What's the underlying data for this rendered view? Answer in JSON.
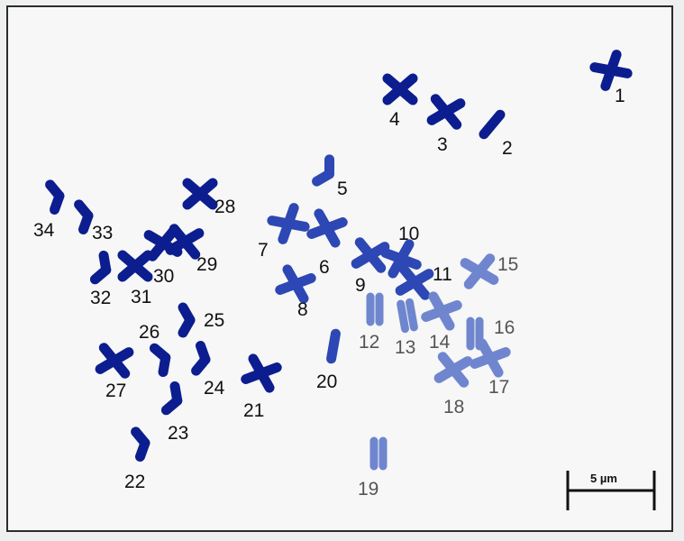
{
  "image": {
    "scale_bar_label": "5 µm",
    "colors": {
      "dark": "#0c1d8f",
      "mid": "#2d47b4",
      "light": "#6f86cf",
      "label_dark": "#111111",
      "label_light": "#555555"
    }
  },
  "chromosomes": [
    {
      "label": "1",
      "shape": "x",
      "tone": "dark"
    },
    {
      "label": "2",
      "shape": "bar",
      "tone": "dark"
    },
    {
      "label": "3",
      "shape": "x",
      "tone": "dark"
    },
    {
      "label": "4",
      "shape": "x",
      "tone": "dark"
    },
    {
      "label": "5",
      "shape": "bent",
      "tone": "mid"
    },
    {
      "label": "6",
      "shape": "x",
      "tone": "mid"
    },
    {
      "label": "7",
      "shape": "x",
      "tone": "mid"
    },
    {
      "label": "8",
      "shape": "x",
      "tone": "mid"
    },
    {
      "label": "9",
      "shape": "x",
      "tone": "mid"
    },
    {
      "label": "10",
      "shape": "x",
      "tone": "mid"
    },
    {
      "label": "11",
      "shape": "x",
      "tone": "mid"
    },
    {
      "label": "12",
      "shape": "pair",
      "tone": "light"
    },
    {
      "label": "13",
      "shape": "pair",
      "tone": "light"
    },
    {
      "label": "14",
      "shape": "x",
      "tone": "light"
    },
    {
      "label": "15",
      "shape": "x",
      "tone": "light"
    },
    {
      "label": "16",
      "shape": "pair",
      "tone": "light"
    },
    {
      "label": "17",
      "shape": "x",
      "tone": "light"
    },
    {
      "label": "18",
      "shape": "x",
      "tone": "light"
    },
    {
      "label": "19",
      "shape": "pair",
      "tone": "light"
    },
    {
      "label": "20",
      "shape": "bar",
      "tone": "mid"
    },
    {
      "label": "21",
      "shape": "x",
      "tone": "dark"
    },
    {
      "label": "22",
      "shape": "bent",
      "tone": "dark"
    },
    {
      "label": "23",
      "shape": "bent",
      "tone": "dark"
    },
    {
      "label": "24",
      "shape": "bent",
      "tone": "dark"
    },
    {
      "label": "25",
      "shape": "bent",
      "tone": "dark"
    },
    {
      "label": "26",
      "shape": "bent",
      "tone": "dark"
    },
    {
      "label": "27",
      "shape": "x",
      "tone": "dark"
    },
    {
      "label": "28",
      "shape": "x",
      "tone": "dark"
    },
    {
      "label": "29",
      "shape": "x",
      "tone": "dark"
    },
    {
      "label": "30",
      "shape": "x",
      "tone": "dark"
    },
    {
      "label": "31",
      "shape": "x",
      "tone": "dark"
    },
    {
      "label": "32",
      "shape": "bent",
      "tone": "dark"
    },
    {
      "label": "33",
      "shape": "bent",
      "tone": "dark"
    },
    {
      "label": "34",
      "shape": "bent",
      "tone": "dark"
    }
  ]
}
